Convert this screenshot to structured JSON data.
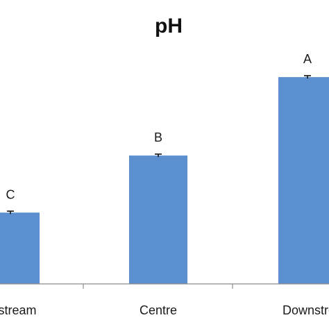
{
  "chart_data": {
    "type": "bar",
    "title": "pH",
    "categories": [
      "Upstream",
      "Centre",
      "Downstream"
    ],
    "category_labels_visible": [
      "stream",
      "Centre",
      "Downstre"
    ],
    "values": [
      6.8,
      7.2,
      7.75
    ],
    "errors": [
      0.01,
      0.01,
      0.01
    ],
    "annotations": [
      "C",
      "B",
      "A"
    ],
    "xlabel": "",
    "ylabel": "",
    "ylim": [
      6.3,
      7.95
    ],
    "grid": false,
    "legend": "none",
    "bar_color": "#5b8fcf"
  }
}
